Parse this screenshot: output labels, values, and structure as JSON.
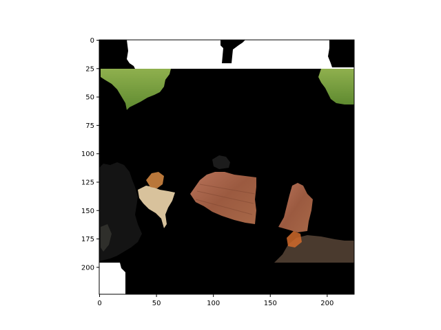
{
  "figure": {
    "image_description": "masked image with patches of grass, a dark animal, a small animal, wooden planks",
    "x_ticks": [
      "0",
      "50",
      "100",
      "150",
      "200"
    ],
    "y_ticks": [
      "0",
      "25",
      "50",
      "75",
      "100",
      "125",
      "150",
      "175",
      "200"
    ],
    "x_tick_values": [
      0,
      50,
      100,
      150,
      200
    ],
    "y_tick_values": [
      0,
      25,
      50,
      75,
      100,
      125,
      150,
      175,
      200
    ],
    "data_extent": {
      "x": [
        0,
        224
      ],
      "y": [
        0,
        224
      ]
    },
    "colors": {
      "mask": "#000000",
      "background": "#ffffff",
      "grass": "#6f9a3a",
      "wood": "#a05a3a",
      "fur_dark": "#1a1a1a",
      "fur_light": "#d9c4a0"
    }
  }
}
